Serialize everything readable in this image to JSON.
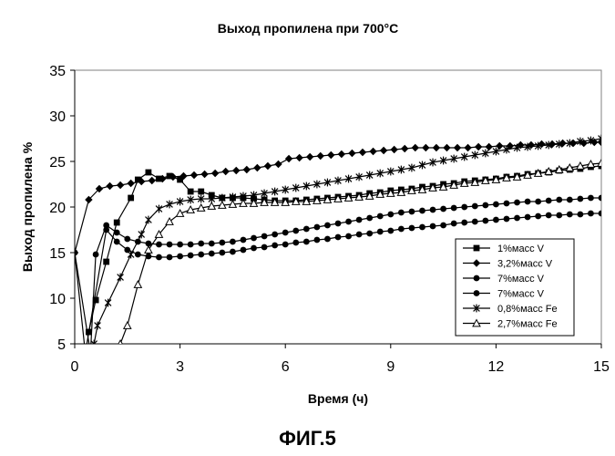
{
  "figure_caption": "ФИГ.5",
  "chart_data": {
    "type": "line",
    "title": "Выход пропилена при 700°C",
    "xlabel": "Время (ч)",
    "ylabel": "Выход пропилена %",
    "xlim": [
      0,
      15
    ],
    "ylim": [
      5,
      35
    ],
    "xticks": [
      0,
      3,
      6,
      9,
      12,
      15
    ],
    "yticks": [
      5,
      10,
      15,
      20,
      25,
      30,
      35
    ],
    "grid": false,
    "legend_position": "right",
    "series": [
      {
        "name": "1%масс V",
        "marker": "square",
        "points": [
          [
            0.4,
            6.3
          ],
          [
            0.6,
            9.8
          ],
          [
            0.9,
            14
          ],
          [
            1.2,
            18.3
          ],
          [
            1.6,
            21
          ],
          [
            1.8,
            23
          ],
          [
            2.1,
            23.8
          ],
          [
            2.4,
            23.1
          ],
          [
            2.7,
            23.4
          ],
          [
            3.0,
            23
          ],
          [
            3.3,
            21.7
          ],
          [
            3.6,
            21.7
          ],
          [
            3.9,
            21.3
          ],
          [
            4.2,
            21
          ],
          [
            4.5,
            21
          ],
          [
            4.8,
            21
          ],
          [
            5.1,
            20.9
          ],
          [
            5.4,
            20.8
          ],
          [
            5.7,
            20.7
          ],
          [
            6.0,
            20.7
          ],
          [
            6.3,
            20.7
          ],
          [
            6.6,
            20.8
          ],
          [
            6.9,
            20.9
          ],
          [
            7.2,
            21
          ],
          [
            7.5,
            21.1
          ],
          [
            7.8,
            21.2
          ],
          [
            8.1,
            21.3
          ],
          [
            8.4,
            21.5
          ],
          [
            8.7,
            21.6
          ],
          [
            9.0,
            21.8
          ],
          [
            9.3,
            21.9
          ],
          [
            9.6,
            22
          ],
          [
            9.9,
            22.2
          ],
          [
            10.2,
            22.3
          ],
          [
            10.5,
            22.5
          ],
          [
            10.8,
            22.6
          ],
          [
            11.1,
            22.8
          ],
          [
            11.4,
            22.9
          ],
          [
            11.7,
            23
          ],
          [
            12.0,
            23.1
          ],
          [
            12.3,
            23.3
          ],
          [
            12.6,
            23.4
          ],
          [
            12.9,
            23.6
          ],
          [
            13.2,
            23.7
          ],
          [
            13.5,
            23.8
          ],
          [
            13.8,
            24
          ],
          [
            14.1,
            24.1
          ],
          [
            14.4,
            24.2
          ],
          [
            14.7,
            24.4
          ],
          [
            15.0,
            24.5
          ]
        ]
      },
      {
        "name": "3,2%масс V",
        "marker": "diamond",
        "points": [
          [
            0.0,
            15
          ],
          [
            0.4,
            20.8
          ],
          [
            0.7,
            22
          ],
          [
            1.0,
            22.3
          ],
          [
            1.3,
            22.4
          ],
          [
            1.6,
            22.6
          ],
          [
            1.9,
            22.8
          ],
          [
            2.2,
            22.9
          ],
          [
            2.5,
            23.1
          ],
          [
            2.8,
            23.3
          ],
          [
            3.1,
            23.4
          ],
          [
            3.4,
            23.5
          ],
          [
            3.7,
            23.6
          ],
          [
            4.0,
            23.7
          ],
          [
            4.3,
            23.9
          ],
          [
            4.6,
            24
          ],
          [
            4.9,
            24.1
          ],
          [
            5.2,
            24.3
          ],
          [
            5.5,
            24.5
          ],
          [
            5.8,
            24.7
          ],
          [
            6.1,
            25.3
          ],
          [
            6.4,
            25.4
          ],
          [
            6.7,
            25.5
          ],
          [
            7.0,
            25.6
          ],
          [
            7.3,
            25.7
          ],
          [
            7.6,
            25.8
          ],
          [
            7.9,
            25.9
          ],
          [
            8.2,
            26
          ],
          [
            8.5,
            26.1
          ],
          [
            8.8,
            26.2
          ],
          [
            9.1,
            26.3
          ],
          [
            9.4,
            26.4
          ],
          [
            9.7,
            26.5
          ],
          [
            10.0,
            26.5
          ],
          [
            10.3,
            26.5
          ],
          [
            10.6,
            26.5
          ],
          [
            10.9,
            26.5
          ],
          [
            11.2,
            26.5
          ],
          [
            11.5,
            26.6
          ],
          [
            11.8,
            26.6
          ],
          [
            12.1,
            26.7
          ],
          [
            12.4,
            26.7
          ],
          [
            12.7,
            26.8
          ],
          [
            13.0,
            26.8
          ],
          [
            13.3,
            26.9
          ],
          [
            13.6,
            26.9
          ],
          [
            13.9,
            27
          ],
          [
            14.2,
            27
          ],
          [
            14.5,
            27
          ],
          [
            14.8,
            27.1
          ],
          [
            15.0,
            27.1
          ]
        ]
      },
      {
        "name": "7%масс V",
        "marker": "circle",
        "points": [
          [
            0.0,
            15
          ],
          [
            0.45,
            4
          ],
          [
            0.6,
            14.8
          ],
          [
            0.9,
            18
          ],
          [
            1.2,
            17.2
          ],
          [
            1.5,
            16.5
          ],
          [
            1.8,
            16.2
          ],
          [
            2.1,
            16
          ],
          [
            2.4,
            15.9
          ],
          [
            2.7,
            15.9
          ],
          [
            3.0,
            15.9
          ],
          [
            3.3,
            15.9
          ],
          [
            3.6,
            16
          ],
          [
            3.9,
            16
          ],
          [
            4.2,
            16.1
          ],
          [
            4.5,
            16.2
          ],
          [
            4.8,
            16.4
          ],
          [
            5.1,
            16.6
          ],
          [
            5.4,
            16.8
          ],
          [
            5.7,
            17
          ],
          [
            6.0,
            17.2
          ],
          [
            6.3,
            17.4
          ],
          [
            6.6,
            17.6
          ],
          [
            6.9,
            17.8
          ],
          [
            7.2,
            18
          ],
          [
            7.5,
            18.2
          ],
          [
            7.8,
            18.4
          ],
          [
            8.1,
            18.6
          ],
          [
            8.4,
            18.8
          ],
          [
            8.7,
            19
          ],
          [
            9.0,
            19.2
          ],
          [
            9.3,
            19.4
          ],
          [
            9.6,
            19.5
          ],
          [
            9.9,
            19.6
          ],
          [
            10.2,
            19.7
          ],
          [
            10.5,
            19.8
          ],
          [
            10.8,
            19.9
          ],
          [
            11.1,
            20
          ],
          [
            11.4,
            20.1
          ],
          [
            11.7,
            20.2
          ],
          [
            12.0,
            20.3
          ],
          [
            12.3,
            20.4
          ],
          [
            12.6,
            20.5
          ],
          [
            12.9,
            20.6
          ],
          [
            13.2,
            20.6
          ],
          [
            13.5,
            20.7
          ],
          [
            13.8,
            20.8
          ],
          [
            14.1,
            20.8
          ],
          [
            14.4,
            20.9
          ],
          [
            14.7,
            21
          ],
          [
            15.0,
            21
          ]
        ]
      },
      {
        "name": "7%масс V",
        "marker": "circle",
        "points": [
          [
            0.0,
            15
          ],
          [
            0.3,
            4
          ],
          [
            0.9,
            17.5
          ],
          [
            1.2,
            16.2
          ],
          [
            1.5,
            15.3
          ],
          [
            1.8,
            14.8
          ],
          [
            2.1,
            14.6
          ],
          [
            2.4,
            14.5
          ],
          [
            2.7,
            14.5
          ],
          [
            3.0,
            14.6
          ],
          [
            3.3,
            14.7
          ],
          [
            3.6,
            14.8
          ],
          [
            3.9,
            14.9
          ],
          [
            4.2,
            15
          ],
          [
            4.5,
            15.1
          ],
          [
            4.8,
            15.3
          ],
          [
            5.1,
            15.5
          ],
          [
            5.4,
            15.6
          ],
          [
            5.7,
            15.8
          ],
          [
            6.0,
            15.9
          ],
          [
            6.3,
            16.1
          ],
          [
            6.6,
            16.2
          ],
          [
            6.9,
            16.4
          ],
          [
            7.2,
            16.5
          ],
          [
            7.5,
            16.7
          ],
          [
            7.8,
            16.8
          ],
          [
            8.1,
            17
          ],
          [
            8.4,
            17.1
          ],
          [
            8.7,
            17.3
          ],
          [
            9.0,
            17.4
          ],
          [
            9.3,
            17.6
          ],
          [
            9.6,
            17.7
          ],
          [
            9.9,
            17.8
          ],
          [
            10.2,
            17.9
          ],
          [
            10.5,
            18
          ],
          [
            10.8,
            18.2
          ],
          [
            11.1,
            18.3
          ],
          [
            11.4,
            18.4
          ],
          [
            11.7,
            18.5
          ],
          [
            12.0,
            18.6
          ],
          [
            12.3,
            18.7
          ],
          [
            12.6,
            18.8
          ],
          [
            12.9,
            18.9
          ],
          [
            13.2,
            19
          ],
          [
            13.5,
            19.1
          ],
          [
            13.8,
            19.1
          ],
          [
            14.1,
            19.2
          ],
          [
            14.4,
            19.2
          ],
          [
            14.7,
            19.3
          ],
          [
            15.0,
            19.3
          ]
        ]
      },
      {
        "name": "0,8%масс Fe",
        "marker": "star",
        "points": [
          [
            0.55,
            5
          ],
          [
            0.65,
            7
          ],
          [
            0.95,
            9.5
          ],
          [
            1.3,
            12.3
          ],
          [
            1.6,
            14.8
          ],
          [
            1.9,
            17
          ],
          [
            2.1,
            18.6
          ],
          [
            2.4,
            19.8
          ],
          [
            2.7,
            20.3
          ],
          [
            3.0,
            20.6
          ],
          [
            3.3,
            20.8
          ],
          [
            3.6,
            20.9
          ],
          [
            3.9,
            20.9
          ],
          [
            4.2,
            21
          ],
          [
            4.5,
            21.1
          ],
          [
            4.8,
            21.2
          ],
          [
            5.1,
            21.3
          ],
          [
            5.4,
            21.5
          ],
          [
            5.7,
            21.7
          ],
          [
            6.0,
            21.9
          ],
          [
            6.3,
            22.1
          ],
          [
            6.6,
            22.3
          ],
          [
            6.9,
            22.5
          ],
          [
            7.2,
            22.7
          ],
          [
            7.5,
            22.9
          ],
          [
            7.8,
            23.1
          ],
          [
            8.1,
            23.3
          ],
          [
            8.4,
            23.5
          ],
          [
            8.7,
            23.7
          ],
          [
            9.0,
            23.9
          ],
          [
            9.3,
            24.1
          ],
          [
            9.6,
            24.3
          ],
          [
            9.9,
            24.6
          ],
          [
            10.2,
            24.9
          ],
          [
            10.5,
            25.1
          ],
          [
            10.8,
            25.3
          ],
          [
            11.1,
            25.5
          ],
          [
            11.4,
            25.7
          ],
          [
            11.7,
            25.9
          ],
          [
            12.0,
            26.1
          ],
          [
            12.3,
            26.3
          ],
          [
            12.6,
            26.5
          ],
          [
            12.9,
            26.6
          ],
          [
            13.2,
            26.7
          ],
          [
            13.5,
            26.8
          ],
          [
            13.8,
            26.9
          ],
          [
            14.1,
            27
          ],
          [
            14.4,
            27.2
          ],
          [
            14.7,
            27.3
          ],
          [
            15.0,
            27.5
          ]
        ]
      },
      {
        "name": "2,7%масс Fe",
        "marker": "triangle",
        "points": [
          [
            1.3,
            5
          ],
          [
            1.5,
            7
          ],
          [
            1.8,
            11.5
          ],
          [
            2.1,
            15.3
          ],
          [
            2.4,
            17
          ],
          [
            2.7,
            18.4
          ],
          [
            3.0,
            19.3
          ],
          [
            3.3,
            19.7
          ],
          [
            3.6,
            19.9
          ],
          [
            3.9,
            20.1
          ],
          [
            4.2,
            20.2
          ],
          [
            4.5,
            20.3
          ],
          [
            4.8,
            20.4
          ],
          [
            5.1,
            20.4
          ],
          [
            5.4,
            20.5
          ],
          [
            5.7,
            20.5
          ],
          [
            6.0,
            20.5
          ],
          [
            6.3,
            20.6
          ],
          [
            6.6,
            20.6
          ],
          [
            6.9,
            20.7
          ],
          [
            7.2,
            20.8
          ],
          [
            7.5,
            20.9
          ],
          [
            7.8,
            21
          ],
          [
            8.1,
            21.1
          ],
          [
            8.4,
            21.2
          ],
          [
            8.7,
            21.4
          ],
          [
            9.0,
            21.5
          ],
          [
            9.3,
            21.6
          ],
          [
            9.6,
            21.8
          ],
          [
            9.9,
            21.9
          ],
          [
            10.2,
            22.1
          ],
          [
            10.5,
            22.2
          ],
          [
            10.8,
            22.4
          ],
          [
            11.1,
            22.6
          ],
          [
            11.4,
            22.7
          ],
          [
            11.7,
            22.9
          ],
          [
            12.0,
            23
          ],
          [
            12.3,
            23.2
          ],
          [
            12.6,
            23.3
          ],
          [
            12.9,
            23.5
          ],
          [
            13.2,
            23.7
          ],
          [
            13.5,
            23.9
          ],
          [
            13.8,
            24.1
          ],
          [
            14.1,
            24.3
          ],
          [
            14.4,
            24.5
          ],
          [
            14.7,
            24.7
          ],
          [
            15.0,
            24.8
          ]
        ]
      }
    ]
  }
}
